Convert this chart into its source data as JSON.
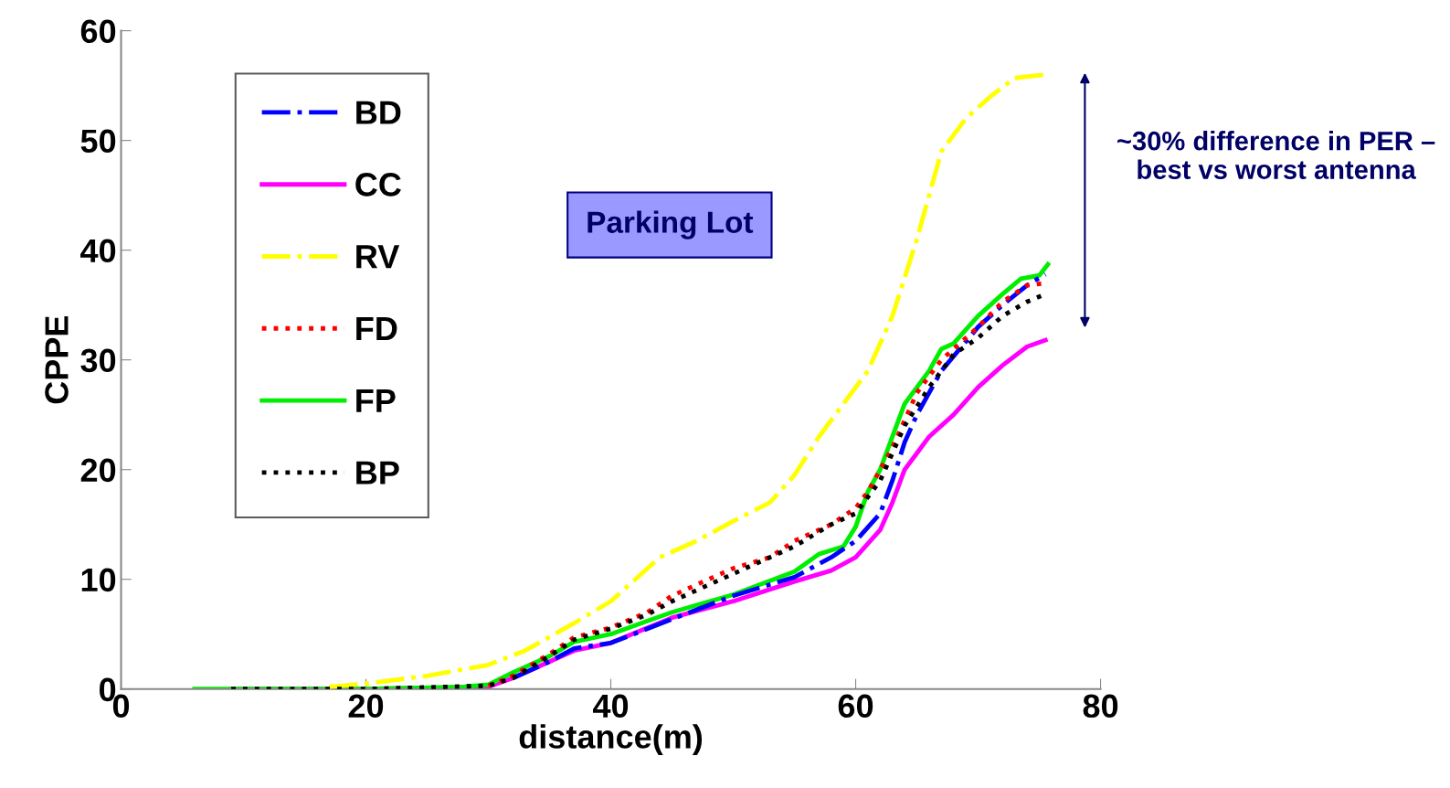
{
  "chart_data": {
    "type": "line",
    "xlabel": "distance(m)",
    "ylabel": "CPPE",
    "xlim": [
      0,
      80
    ],
    "xticks": [
      0,
      20,
      40,
      60,
      80
    ],
    "ylim": [
      0,
      60
    ],
    "yticks": [
      0,
      10,
      20,
      30,
      40,
      50,
      60
    ],
    "grid": false,
    "legend": "top left",
    "marker": "none",
    "annotations": [
      "Parking Lot",
      "~30% difference in PER – best vs worst antenna"
    ],
    "series": [
      {
        "name": "BD",
        "color": "#0000ff",
        "line_style": "dashdot",
        "x": [
          32,
          35,
          37,
          40,
          43,
          46,
          50,
          55,
          58,
          60,
          62,
          63,
          64,
          65,
          67,
          70,
          72,
          74,
          75.5
        ],
        "values": [
          1,
          2.5,
          3.7,
          4.2,
          5.5,
          6.8,
          8.5,
          10.2,
          12,
          13.5,
          16,
          19,
          22.5,
          25,
          29,
          33,
          35,
          36.8,
          37.8
        ]
      },
      {
        "name": "CC",
        "color": "#ff00ff",
        "line_style": "solid",
        "x": [
          9,
          20,
          30,
          32,
          35,
          37,
          40,
          45,
          50,
          55,
          58,
          60,
          62,
          63,
          64,
          65,
          66,
          68,
          70,
          72,
          74,
          75.5
        ],
        "values": [
          0,
          0,
          0.2,
          1,
          2.5,
          3.5,
          4.2,
          6.5,
          8,
          9.8,
          10.8,
          12,
          14.5,
          17,
          20,
          21.5,
          23,
          25,
          27.5,
          29.5,
          31.2,
          31.8
        ]
      },
      {
        "name": "RV",
        "color": "#ffff00",
        "line_style": "dashdot",
        "x": [
          17,
          20,
          25,
          30,
          33,
          37,
          40,
          42,
          44,
          47,
          50,
          53,
          55,
          57,
          59,
          61,
          63,
          65,
          67,
          69,
          71,
          73,
          75.5
        ],
        "values": [
          0.2,
          0.5,
          1.2,
          2.2,
          3.5,
          6,
          8,
          10,
          12,
          13.5,
          15.3,
          17,
          19.5,
          23,
          26,
          29,
          34,
          41,
          49,
          52,
          54,
          55.7,
          56
        ]
      },
      {
        "name": "FD",
        "color": "#ff0000",
        "line_style": "dotted",
        "x": [
          30,
          32,
          35,
          37,
          40,
          43,
          45,
          50,
          53,
          55,
          58,
          60,
          61,
          63,
          65,
          67,
          70,
          72,
          74,
          75.5
        ],
        "values": [
          0.3,
          1.2,
          3.2,
          4.7,
          5.6,
          7,
          8.5,
          11,
          12,
          13.5,
          15,
          16.5,
          18,
          22,
          27,
          30,
          33,
          35.3,
          36.8,
          37
        ]
      },
      {
        "name": "FP",
        "color": "#00ee00",
        "line_style": "solid",
        "x": [
          6,
          20,
          28,
          30,
          32,
          35,
          37,
          40,
          43,
          45,
          50,
          55,
          57,
          59,
          60,
          61,
          62,
          63,
          64,
          65,
          66,
          67,
          68,
          70,
          72,
          73.5,
          75,
          75.7
        ],
        "values": [
          0,
          0,
          0.2,
          0.4,
          1.5,
          3,
          4.3,
          5,
          6.2,
          7,
          8.6,
          10.7,
          12.3,
          13,
          14.8,
          18,
          20,
          23,
          26,
          27.5,
          29,
          31,
          31.5,
          34,
          36,
          37.4,
          37.7,
          38.7
        ]
      },
      {
        "name": "BP",
        "color": "#000000",
        "line_style": "dotted",
        "x": [
          9,
          20,
          30,
          32,
          35,
          37,
          40,
          43,
          45,
          50,
          55,
          58,
          60,
          62,
          64,
          66,
          68,
          70,
          72,
          74,
          75.5
        ],
        "values": [
          0,
          0,
          0.3,
          1,
          3,
          4.5,
          5.5,
          6.8,
          8,
          10.5,
          13,
          15,
          16,
          19,
          24,
          27.5,
          30.5,
          32,
          34,
          35.3,
          36
        ]
      }
    ]
  }
}
